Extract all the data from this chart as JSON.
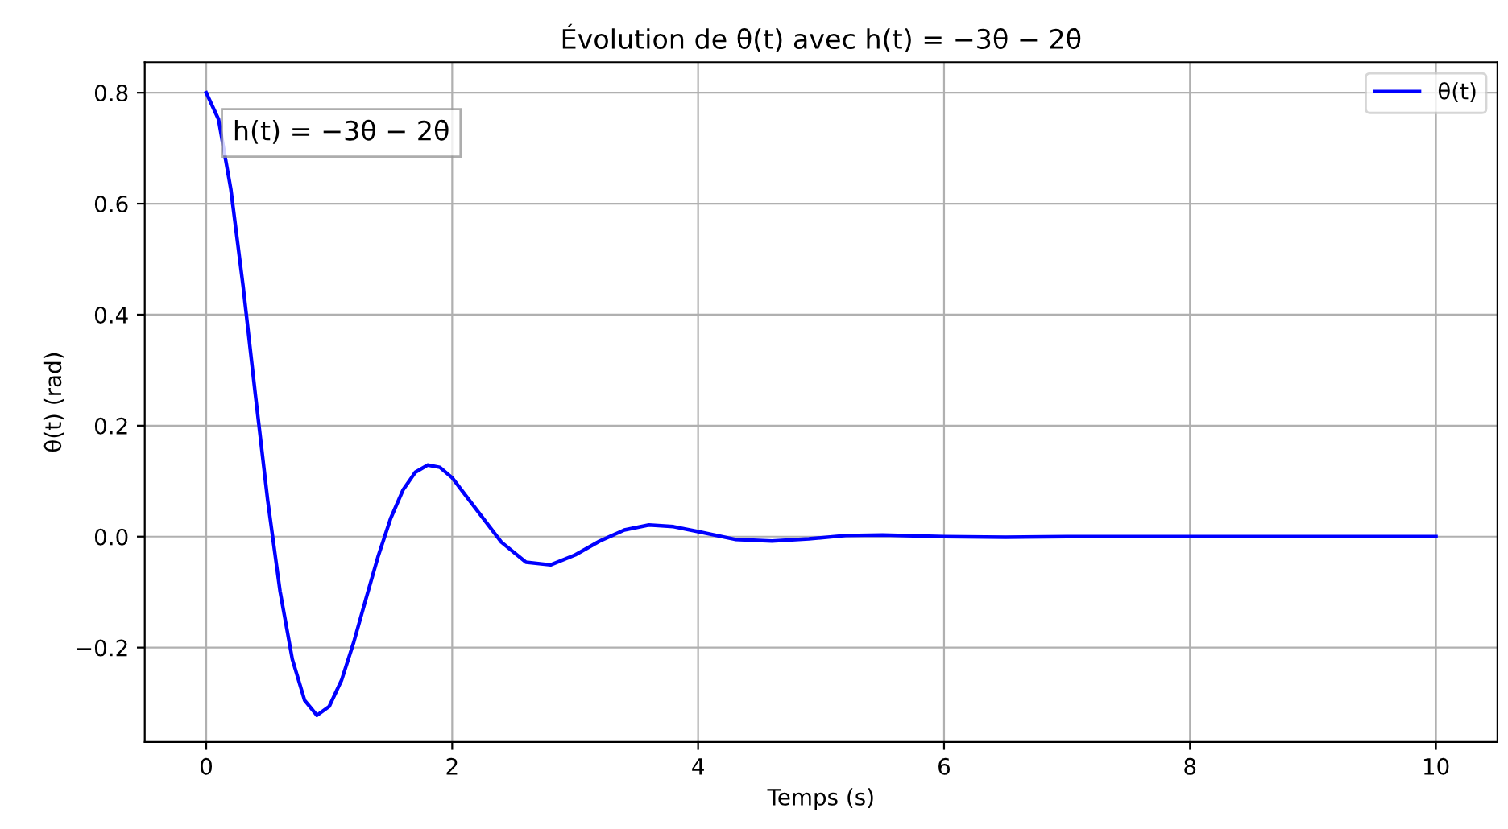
{
  "chart_data": {
    "type": "line",
    "title": "Évolution de θ(t) avec h(t) = −3θ − 2θ̇",
    "xlabel": "Temps (s)",
    "ylabel": "θ(t) (rad)",
    "annotations": [
      "h(t) = −3θ − 2θ̇"
    ],
    "x": [
      0,
      0.1,
      0.2,
      0.3,
      0.4,
      0.5,
      0.6,
      0.7,
      0.8,
      0.9,
      1.0,
      1.1,
      1.2,
      1.3,
      1.4,
      1.5,
      1.6,
      1.7,
      1.8,
      1.9,
      2.0,
      2.2,
      2.4,
      2.6,
      2.8,
      3.0,
      3.2,
      3.4,
      3.6,
      3.8,
      4.0,
      4.3,
      4.6,
      4.9,
      5.2,
      5.5,
      6.0,
      6.5,
      7.0,
      8.0,
      9.0,
      10.0
    ],
    "series": [
      {
        "name": "θ(t)",
        "color": "#0000ff",
        "values": [
          0.8,
          0.752,
          0.626,
          0.451,
          0.255,
          0.065,
          -0.098,
          -0.221,
          -0.295,
          -0.322,
          -0.306,
          -0.259,
          -0.19,
          -0.111,
          -0.034,
          0.033,
          0.084,
          0.116,
          0.129,
          0.125,
          0.106,
          0.048,
          -0.01,
          -0.046,
          -0.051,
          -0.033,
          -0.008,
          0.012,
          0.021,
          0.018,
          0.009,
          -0.005,
          -0.008,
          -0.004,
          0.002,
          0.003,
          0.0,
          -0.001,
          0.0,
          0.0,
          0.0,
          0.0
        ]
      }
    ],
    "xlim": [
      -0.5,
      10.5
    ],
    "ylim": [
      -0.37,
      0.855
    ],
    "xticks": [
      0,
      2,
      4,
      6,
      8,
      10
    ],
    "yticks": [
      {
        "value": -0.2,
        "label": "−0.2"
      },
      {
        "value": 0.0,
        "label": "0.0"
      },
      {
        "value": 0.2,
        "label": "0.2"
      },
      {
        "value": 0.4,
        "label": "0.4"
      },
      {
        "value": 0.6,
        "label": "0.6"
      },
      {
        "value": 0.8,
        "label": "0.8"
      }
    ],
    "grid": true,
    "legend": "top right",
    "line_style": "solid",
    "marker": "none"
  }
}
